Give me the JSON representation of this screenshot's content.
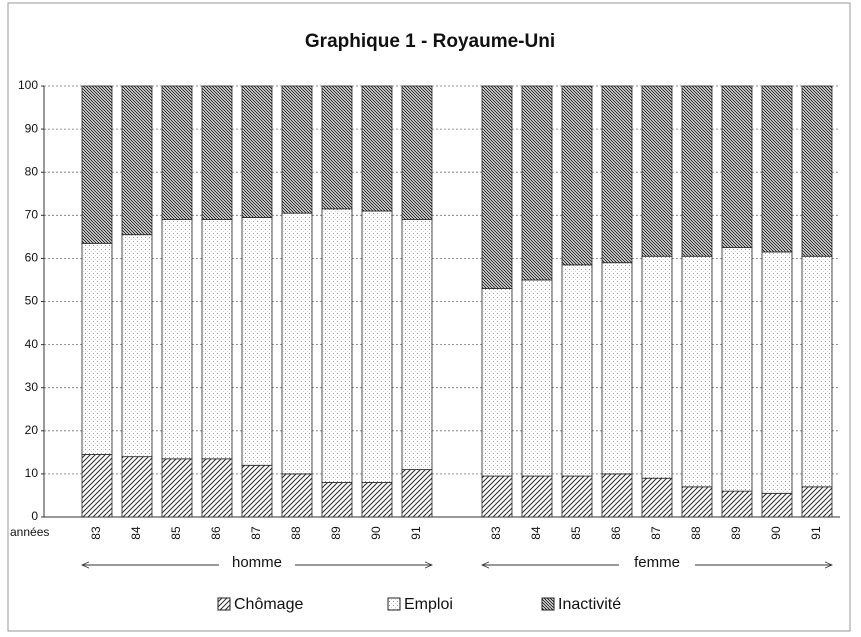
{
  "chart_data": {
    "type": "bar",
    "stacked": true,
    "title": "Graphique 1 - Royaume-Uni",
    "x_label": "années",
    "ylim": [
      0,
      100
    ],
    "yticks": [
      0,
      10,
      20,
      30,
      40,
      50,
      60,
      70,
      80,
      90,
      100
    ],
    "grid": true,
    "legend": [
      {
        "name": "Chômage",
        "color": "#555555",
        "pattern": "hatch"
      },
      {
        "name": "Emploi",
        "color": "#f2f2f2",
        "pattern": "dots"
      },
      {
        "name": "Inactivité",
        "color": "#333333",
        "pattern": "dense-hatch"
      }
    ],
    "groups": [
      {
        "label": "homme",
        "categories": [
          "83",
          "84",
          "85",
          "86",
          "87",
          "88",
          "89",
          "90",
          "91"
        ],
        "series": [
          {
            "values": [
              14.5,
              14,
              13.5,
              13.5,
              12,
              10,
              8,
              8,
              11
            ]
          },
          {
            "values": [
              49,
              51.5,
              55.5,
              55.5,
              57.5,
              60.5,
              63.5,
              63,
              58
            ]
          },
          {
            "values": [
              36.5,
              34.5,
              31,
              31,
              30.5,
              29.5,
              28.5,
              29,
              31
            ]
          }
        ]
      },
      {
        "label": "femme",
        "categories": [
          "83",
          "84",
          "85",
          "86",
          "87",
          "88",
          "89",
          "90",
          "91"
        ],
        "series": [
          {
            "values": [
              9.5,
              9.5,
              9.5,
              10,
              9,
              7,
              6,
              5.5,
              7
            ]
          },
          {
            "values": [
              43.5,
              45.5,
              49,
              49,
              51.5,
              53.5,
              56.5,
              56,
              53.5
            ]
          },
          {
            "values": [
              47,
              45,
              41.5,
              41,
              39.5,
              39.5,
              37.5,
              38.5,
              39.5
            ]
          }
        ]
      }
    ]
  }
}
